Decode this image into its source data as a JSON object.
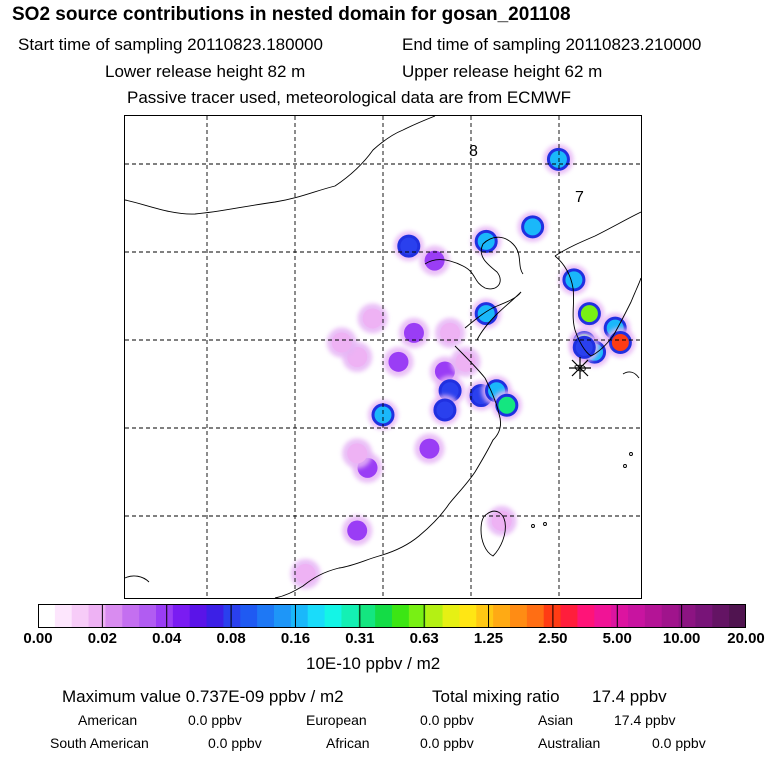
{
  "header": {
    "title": "SO2 source contributions in nested domain for gosan_201108",
    "start_label": "Start time of sampling 20110823.180000",
    "end_label": "End time of sampling 20110823.210000",
    "lower_label": "Lower release height   82 m",
    "upper_label": "Upper release height   62 m",
    "tracer_label": "Passive tracer used, meteorological data are from ECMWF"
  },
  "map": {
    "labels": [
      "8",
      "7"
    ],
    "receptor_marker": "station-star-icon"
  },
  "chart_data": {
    "type": "heatmap",
    "title": "SO2 source contributions in nested domain for gosan_201108",
    "colorbar_unit": "10E-10 ppbv / m2",
    "colorbar_ticks": [
      "0.00",
      "0.02",
      "0.04",
      "0.08",
      "0.16",
      "0.31",
      "0.63",
      "1.25",
      "2.50",
      "5.00",
      "10.00",
      "20.00"
    ],
    "colorbar_tick_values": [
      0.0,
      0.02,
      0.04,
      0.08,
      0.16,
      0.31,
      0.63,
      1.25,
      2.5,
      5.0,
      10.0,
      20.0
    ],
    "colors": [
      "#ffffff",
      "#fde6fd",
      "#f7ccf8",
      "#eeb2f4",
      "#d98cf0",
      "#c46ff0",
      "#b15cf2",
      "#9a3df5",
      "#7a1cf2",
      "#5a14e8",
      "#3c20e6",
      "#2a40ee",
      "#1f5af2",
      "#1e78f5",
      "#1e96f8",
      "#1ab8fa",
      "#1adcfa",
      "#14f5e6",
      "#14f0b4",
      "#14e680",
      "#14dc46",
      "#3ce614",
      "#78f014",
      "#b4f014",
      "#e6f014",
      "#ffe614",
      "#ffc814",
      "#ffaa14",
      "#ff8c14",
      "#ff6e14",
      "#ff3c14",
      "#ff1e3c",
      "#ff1478",
      "#f01496",
      "#dc14a0",
      "#c814a0",
      "#b41496",
      "#a0148c",
      "#8c1482",
      "#781478",
      "#641464",
      "#501450"
    ],
    "max_value_label": "Maximum value  0.737E-09 ppbv / m2",
    "total_label": "Total mixing ratio",
    "total_value": "17.4 ppbv",
    "regions": [
      {
        "name": "American",
        "value": "0.0 ppbv"
      },
      {
        "name": "European",
        "value": "0.0 ppbv"
      },
      {
        "name": "Asian",
        "value": "17.4 ppbv"
      },
      {
        "name": "South American",
        "value": "0.0 ppbv"
      },
      {
        "name": "African",
        "value": "0.0 ppbv"
      },
      {
        "name": "Australian",
        "value": "0.0 ppbv"
      }
    ],
    "hotspots": [
      {
        "lon": 0.84,
        "lat": 0.09,
        "level": 0.16
      },
      {
        "lon": 0.79,
        "lat": 0.23,
        "level": 0.16
      },
      {
        "lon": 0.7,
        "lat": 0.26,
        "level": 0.16
      },
      {
        "lon": 0.55,
        "lat": 0.27,
        "level": 0.08
      },
      {
        "lon": 0.6,
        "lat": 0.3,
        "level": 0.04
      },
      {
        "lon": 0.87,
        "lat": 0.34,
        "level": 0.16
      },
      {
        "lon": 0.9,
        "lat": 0.41,
        "level": 0.63
      },
      {
        "lon": 0.95,
        "lat": 0.44,
        "level": 0.16
      },
      {
        "lon": 0.96,
        "lat": 0.47,
        "level": 2.5
      },
      {
        "lon": 0.89,
        "lat": 0.47,
        "level": 0.31
      },
      {
        "lon": 0.91,
        "lat": 0.49,
        "level": 0.16
      },
      {
        "lon": 0.89,
        "lat": 0.48,
        "level": 0.08
      },
      {
        "lon": 0.7,
        "lat": 0.41,
        "level": 0.16
      },
      {
        "lon": 0.56,
        "lat": 0.45,
        "level": 0.04
      },
      {
        "lon": 0.63,
        "lat": 0.45,
        "level": 0.02
      },
      {
        "lon": 0.53,
        "lat": 0.51,
        "level": 0.04
      },
      {
        "lon": 0.45,
        "lat": 0.5,
        "level": 0.02
      },
      {
        "lon": 0.62,
        "lat": 0.53,
        "level": 0.04
      },
      {
        "lon": 0.63,
        "lat": 0.57,
        "level": 0.08
      },
      {
        "lon": 0.69,
        "lat": 0.58,
        "level": 0.08
      },
      {
        "lon": 0.72,
        "lat": 0.57,
        "level": 0.16
      },
      {
        "lon": 0.74,
        "lat": 0.6,
        "level": 0.31
      },
      {
        "lon": 0.62,
        "lat": 0.61,
        "level": 0.08
      },
      {
        "lon": 0.5,
        "lat": 0.62,
        "level": 0.16
      },
      {
        "lon": 0.59,
        "lat": 0.69,
        "level": 0.04
      },
      {
        "lon": 0.47,
        "lat": 0.73,
        "level": 0.04
      },
      {
        "lon": 0.45,
        "lat": 0.7,
        "level": 0.02
      },
      {
        "lon": 0.45,
        "lat": 0.86,
        "level": 0.04
      },
      {
        "lon": 0.73,
        "lat": 0.84,
        "level": 0.02
      },
      {
        "lon": 0.35,
        "lat": 0.95,
        "level": 0.02
      },
      {
        "lon": 0.42,
        "lat": 0.47,
        "level": 0.02
      },
      {
        "lon": 0.48,
        "lat": 0.42,
        "level": 0.02
      },
      {
        "lon": 0.66,
        "lat": 0.51,
        "level": 0.02
      }
    ]
  }
}
